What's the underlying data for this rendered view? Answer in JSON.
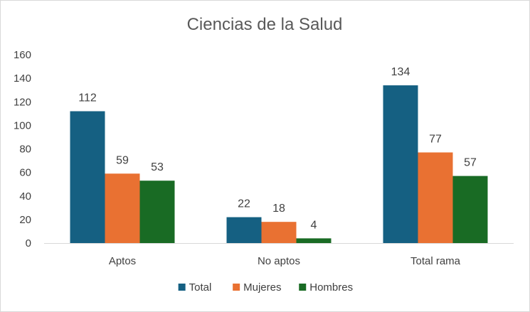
{
  "chart_data": {
    "type": "bar",
    "title": "Ciencias de la Salud",
    "categories": [
      "Aptos",
      "No aptos",
      "Total rama"
    ],
    "series": [
      {
        "name": "Total",
        "values": [
          112,
          22,
          134
        ],
        "color": "#156082"
      },
      {
        "name": "Mujeres",
        "values": [
          59,
          18,
          77
        ],
        "color": "#E97132"
      },
      {
        "name": "Hombres",
        "values": [
          53,
          4,
          57
        ],
        "color": "#196B24"
      }
    ],
    "ylim": [
      0,
      160
    ],
    "yticks": [
      0,
      20,
      40,
      60,
      80,
      100,
      120,
      140,
      160
    ],
    "grid": false,
    "legend_position": "bottom",
    "data_labels": true
  }
}
